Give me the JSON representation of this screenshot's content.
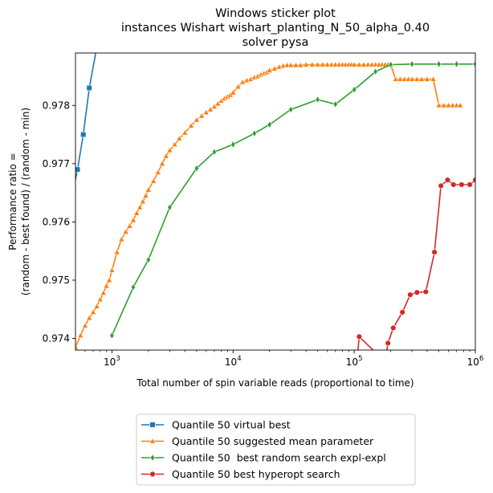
{
  "chart_data": {
    "type": "line",
    "title_lines": [
      "Windows sticker plot",
      "instances Wishart wishart_planting_N_50_alpha_0.40",
      "solver pysa"
    ],
    "xlabel": "Total number of spin variable reads (proportional to time)",
    "ylabel_lines": [
      "Performance ratio =",
      "(random - best found) / (random - min)"
    ],
    "x_scale": "log",
    "xlim": [
      500,
      1000000
    ],
    "ylim": [
      0.9738,
      0.9789
    ],
    "x_ticks": [
      {
        "value": 1000,
        "base": "10",
        "exp": "3"
      },
      {
        "value": 10000,
        "base": "10",
        "exp": "4"
      },
      {
        "value": 100000,
        "base": "10",
        "exp": "5"
      },
      {
        "value": 1000000,
        "base": "10",
        "exp": "6"
      }
    ],
    "y_ticks": [
      {
        "value": 0.974,
        "label": "0.974"
      },
      {
        "value": 0.975,
        "label": "0.975"
      },
      {
        "value": 0.976,
        "label": "0.976"
      },
      {
        "value": 0.977,
        "label": "0.977"
      },
      {
        "value": 0.978,
        "label": "0.978"
      }
    ],
    "legend_position": "below",
    "series": [
      {
        "name": "Quantile 50 virtual best",
        "color": "#1f77b4",
        "marker": "square",
        "x": [
          480,
          520,
          580,
          650,
          750
        ],
        "y": [
          0.97655,
          0.9769,
          0.9775,
          0.9783,
          0.979
        ]
      },
      {
        "name": "Quantile 50 suggested mean parameter",
        "color": "#ff7f0e",
        "marker": "triangle",
        "x": [
          500,
          550,
          600,
          650,
          700,
          750,
          800,
          850,
          900,
          950,
          1000,
          1100,
          1200,
          1300,
          1400,
          1500,
          1600,
          1700,
          1800,
          1900,
          2000,
          2200,
          2400,
          2600,
          2800,
          3000,
          3300,
          3600,
          4000,
          4500,
          5000,
          5500,
          6000,
          6500,
          7000,
          7500,
          8000,
          8500,
          9000,
          9500,
          10000,
          11000,
          12000,
          13000,
          14000,
          15000,
          16000,
          17000,
          18000,
          19000,
          20000,
          22000,
          24000,
          26000,
          28000,
          30000,
          33000,
          36000,
          40000,
          45000,
          50000,
          55000,
          60000,
          65000,
          70000,
          75000,
          80000,
          85000,
          90000,
          95000,
          100000,
          110000,
          120000,
          130000,
          140000,
          150000,
          160000,
          170000,
          180000,
          190000,
          200000,
          220000,
          240000,
          260000,
          280000,
          300000,
          330000,
          360000,
          400000,
          450000,
          500000,
          550000,
          600000,
          650000,
          700000,
          750000
        ],
        "y": [
          0.97385,
          0.97405,
          0.97422,
          0.97435,
          0.97445,
          0.97455,
          0.97467,
          0.97478,
          0.9749,
          0.975,
          0.97517,
          0.97548,
          0.9757,
          0.97583,
          0.97593,
          0.97603,
          0.97615,
          0.97625,
          0.97635,
          0.97645,
          0.97655,
          0.9767,
          0.97685,
          0.977,
          0.97713,
          0.97723,
          0.97733,
          0.97743,
          0.97753,
          0.97765,
          0.97775,
          0.97782,
          0.97788,
          0.97793,
          0.97798,
          0.97803,
          0.97808,
          0.97812,
          0.97815,
          0.97818,
          0.97822,
          0.97832,
          0.9784,
          0.97843,
          0.97845,
          0.97848,
          0.9785,
          0.97853,
          0.97855,
          0.97857,
          0.9786,
          0.97863,
          0.97866,
          0.97868,
          0.97869,
          0.97869,
          0.97869,
          0.97869,
          0.9787,
          0.9787,
          0.9787,
          0.9787,
          0.9787,
          0.9787,
          0.9787,
          0.9787,
          0.9787,
          0.9787,
          0.9787,
          0.9787,
          0.9787,
          0.9787,
          0.9787,
          0.9787,
          0.9787,
          0.9787,
          0.9787,
          0.9787,
          0.9787,
          0.9787,
          0.9787,
          0.97845,
          0.97845,
          0.97845,
          0.97845,
          0.97845,
          0.97845,
          0.97845,
          0.97845,
          0.97845,
          0.978,
          0.978,
          0.978,
          0.978,
          0.978,
          0.978
        ]
      },
      {
        "name": "Quantile 50  best random search expl-expl",
        "color": "#2ca02c",
        "marker": "diamond",
        "x": [
          1000,
          1500,
          2000,
          3000,
          5000,
          7000,
          10000,
          15000,
          20000,
          30000,
          50000,
          70000,
          100000,
          150000,
          200000,
          300000,
          500000,
          700000,
          1000000
        ],
        "y": [
          0.97405,
          0.97488,
          0.97535,
          0.97625,
          0.97692,
          0.9772,
          0.97733,
          0.97752,
          0.97767,
          0.97793,
          0.9781,
          0.97802,
          0.97827,
          0.97858,
          0.9787,
          0.97871,
          0.97871,
          0.97871,
          0.97871
        ]
      },
      {
        "name": "Quantile 50 best hyperopt search",
        "color": "#d62728",
        "marker": "circle",
        "x": [
          105000,
          110000,
          180000,
          190000,
          210000,
          250000,
          290000,
          330000,
          390000,
          460000,
          520000,
          590000,
          660000,
          770000,
          900000,
          1000000
        ],
        "y": [
          0.9736,
          0.97403,
          0.9736,
          0.97392,
          0.97418,
          0.97445,
          0.97475,
          0.97479,
          0.9748,
          0.97548,
          0.97662,
          0.97672,
          0.97664,
          0.97664,
          0.97664,
          0.97672
        ]
      }
    ]
  }
}
